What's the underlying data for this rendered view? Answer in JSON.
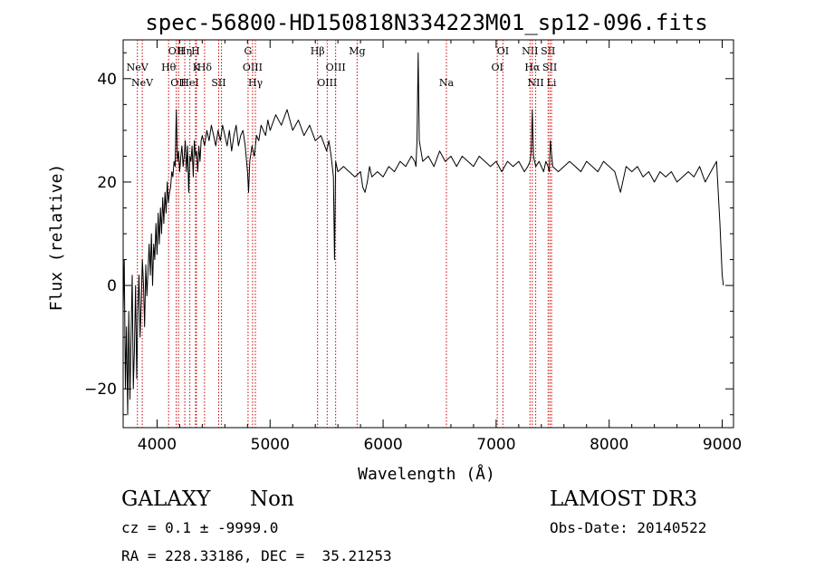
{
  "chart_data": {
    "type": "line",
    "title": "spec-56800-HD150818N334223M01_sp12-096.fits",
    "xlabel": "Wavelength (Å)",
    "ylabel": "Flux (relative)",
    "xlim": [
      3700,
      9100
    ],
    "ylim": [
      -27.5,
      47.5
    ],
    "xticks": [
      4000,
      5000,
      6000,
      7000,
      8000,
      9000
    ],
    "yticks": [
      -20,
      0,
      20,
      40
    ],
    "grid": false,
    "line_color": "#000000",
    "marker_color": "#cc0000",
    "series": [
      {
        "x": [
          3700,
          3710,
          3720,
          3730,
          3740,
          3750,
          3760,
          3770,
          3780,
          3790,
          3800,
          3810,
          3820,
          3830,
          3840,
          3850,
          3860,
          3870,
          3880,
          3890,
          3900,
          3910,
          3920,
          3930,
          3940,
          3950,
          3960,
          3970,
          3980,
          3990,
          4000,
          4010,
          4020,
          4030,
          4040,
          4050,
          4060,
          4070,
          4080,
          4090,
          4100,
          4110,
          4120,
          4130,
          4140,
          4150,
          4160,
          4170,
          4180,
          4190,
          4200,
          4210,
          4220,
          4230,
          4240,
          4250,
          4260,
          4270,
          4280,
          4290,
          4300,
          4310,
          4320,
          4330,
          4340,
          4350,
          4360,
          4370,
          4380,
          4390,
          4400,
          4420,
          4440,
          4460,
          4480,
          4500,
          4520,
          4540,
          4560,
          4580,
          4600,
          4620,
          4640,
          4660,
          4680,
          4700,
          4720,
          4740,
          4760,
          4780,
          4800,
          4810,
          4820,
          4840,
          4860,
          4880,
          4900,
          4920,
          4940,
          4960,
          4980,
          5000,
          5050,
          5100,
          5150,
          5200,
          5250,
          5300,
          5350,
          5400,
          5450,
          5500,
          5520,
          5540,
          5560,
          5570,
          5580,
          5600,
          5650,
          5700,
          5750,
          5800,
          5820,
          5840,
          5860,
          5880,
          5900,
          5950,
          6000,
          6050,
          6100,
          6150,
          6200,
          6250,
          6280,
          6290,
          6300,
          6310,
          6320,
          6350,
          6400,
          6450,
          6500,
          6550,
          6600,
          6650,
          6700,
          6750,
          6800,
          6850,
          6900,
          6950,
          7000,
          7050,
          7100,
          7150,
          7200,
          7250,
          7280,
          7300,
          7310,
          7320,
          7330,
          7350,
          7380,
          7400,
          7420,
          7440,
          7460,
          7470,
          7480,
          7500,
          7550,
          7600,
          7650,
          7700,
          7750,
          7800,
          7850,
          7900,
          7950,
          8000,
          8050,
          8100,
          8150,
          8200,
          8250,
          8300,
          8350,
          8400,
          8450,
          8500,
          8550,
          8600,
          8650,
          8700,
          8750,
          8800,
          8850,
          8900,
          8950,
          8980,
          9000,
          9010
        ],
        "y": [
          -5,
          5,
          -20,
          -8,
          -25,
          -5,
          -22,
          -10,
          2,
          -20,
          -12,
          0,
          -18,
          -5,
          2,
          -10,
          -3,
          5,
          0,
          -8,
          4,
          -2,
          3,
          8,
          2,
          10,
          0,
          8,
          5,
          12,
          6,
          14,
          8,
          15,
          10,
          17,
          12,
          18,
          14,
          20,
          16,
          18,
          19,
          22,
          21,
          24,
          23,
          34,
          24,
          26,
          22,
          25,
          27,
          23,
          25,
          28,
          22,
          27,
          18,
          25,
          24,
          27,
          21,
          28,
          25,
          26,
          22,
          27,
          24,
          28,
          29,
          27,
          30,
          28,
          31,
          29,
          27,
          30,
          28,
          31,
          29,
          27,
          30,
          26,
          29,
          31,
          27,
          29,
          30,
          27,
          22,
          18,
          24,
          27,
          25,
          29,
          28,
          31,
          30,
          29,
          32,
          30,
          33,
          31,
          34,
          30,
          32,
          29,
          31,
          28,
          29,
          26,
          28,
          25,
          21,
          5,
          24,
          22,
          23,
          22,
          21,
          22,
          19,
          18,
          20,
          23,
          21,
          22,
          21,
          23,
          22,
          24,
          23,
          25,
          24,
          23,
          28,
          45,
          28,
          24,
          25,
          23,
          26,
          24,
          25,
          23,
          25,
          24,
          23,
          25,
          24,
          23,
          24,
          22,
          24,
          23,
          24,
          22,
          23,
          24,
          26,
          34,
          25,
          23,
          24,
          23,
          22,
          24,
          23,
          22,
          28,
          23,
          22,
          23,
          24,
          23,
          22,
          24,
          23,
          22,
          24,
          23,
          22,
          18,
          23,
          22,
          23,
          21,
          22,
          20,
          22,
          21,
          22,
          20,
          21,
          22,
          21,
          23,
          20,
          22,
          24,
          12,
          2,
          0
        ]
      }
    ],
    "line_markers": [
      {
        "x": 3826,
        "label": "NeV",
        "row": 1
      },
      {
        "x": 3869,
        "label": "NeV",
        "row": 2
      },
      {
        "x": 4102,
        "label": "Hθ",
        "row": 1
      },
      {
        "x": 4170,
        "label": "OII",
        "row": 0
      },
      {
        "x": 4190,
        "label": "OII",
        "row": 2
      },
      {
        "x": 4245,
        "label": "Hη",
        "row": 0
      },
      {
        "x": 4290,
        "label": "HeI",
        "row": 2
      },
      {
        "x": 4340,
        "label": "H",
        "row": 0
      },
      {
        "x": 4348,
        "label": "K",
        "row": 1
      },
      {
        "x": 4420,
        "label": "Hδ",
        "row": 1
      },
      {
        "x": 4545,
        "label": "SII",
        "row": 2
      },
      {
        "x": 4570,
        "label": "",
        "row": 3
      },
      {
        "x": 4805,
        "label": "G",
        "row": 0
      },
      {
        "x": 4845,
        "label": "OIII",
        "row": 1
      },
      {
        "x": 4870,
        "label": "Hγ",
        "row": 2
      },
      {
        "x": 5420,
        "label": "Hβ",
        "row": 0
      },
      {
        "x": 5505,
        "label": "OIII",
        "row": 2
      },
      {
        "x": 5580,
        "label": "OIII",
        "row": 1
      },
      {
        "x": 5770,
        "label": "Mg",
        "row": 0
      },
      {
        "x": 6560,
        "label": "Na",
        "row": 2
      },
      {
        "x": 7010,
        "label": "OI",
        "row": 1
      },
      {
        "x": 7060,
        "label": "OI",
        "row": 0
      },
      {
        "x": 7300,
        "label": "NII",
        "row": 0
      },
      {
        "x": 7320,
        "label": "Hα",
        "row": 1
      },
      {
        "x": 7350,
        "label": "NII",
        "row": 2
      },
      {
        "x": 7460,
        "label": "SII",
        "row": 0
      },
      {
        "x": 7475,
        "label": "SII",
        "row": 1
      },
      {
        "x": 7490,
        "label": "Li",
        "row": 2
      }
    ]
  },
  "info": {
    "class_label": "GALAXY",
    "subclass_label": "Non",
    "cz_line": "cz = 0.1 ± -9999.0",
    "coords_line": "RA = 228.33186, DEC =  35.21253",
    "survey_label": "LAMOST DR3",
    "obs_date_line": "Obs-Date: 20140522"
  }
}
